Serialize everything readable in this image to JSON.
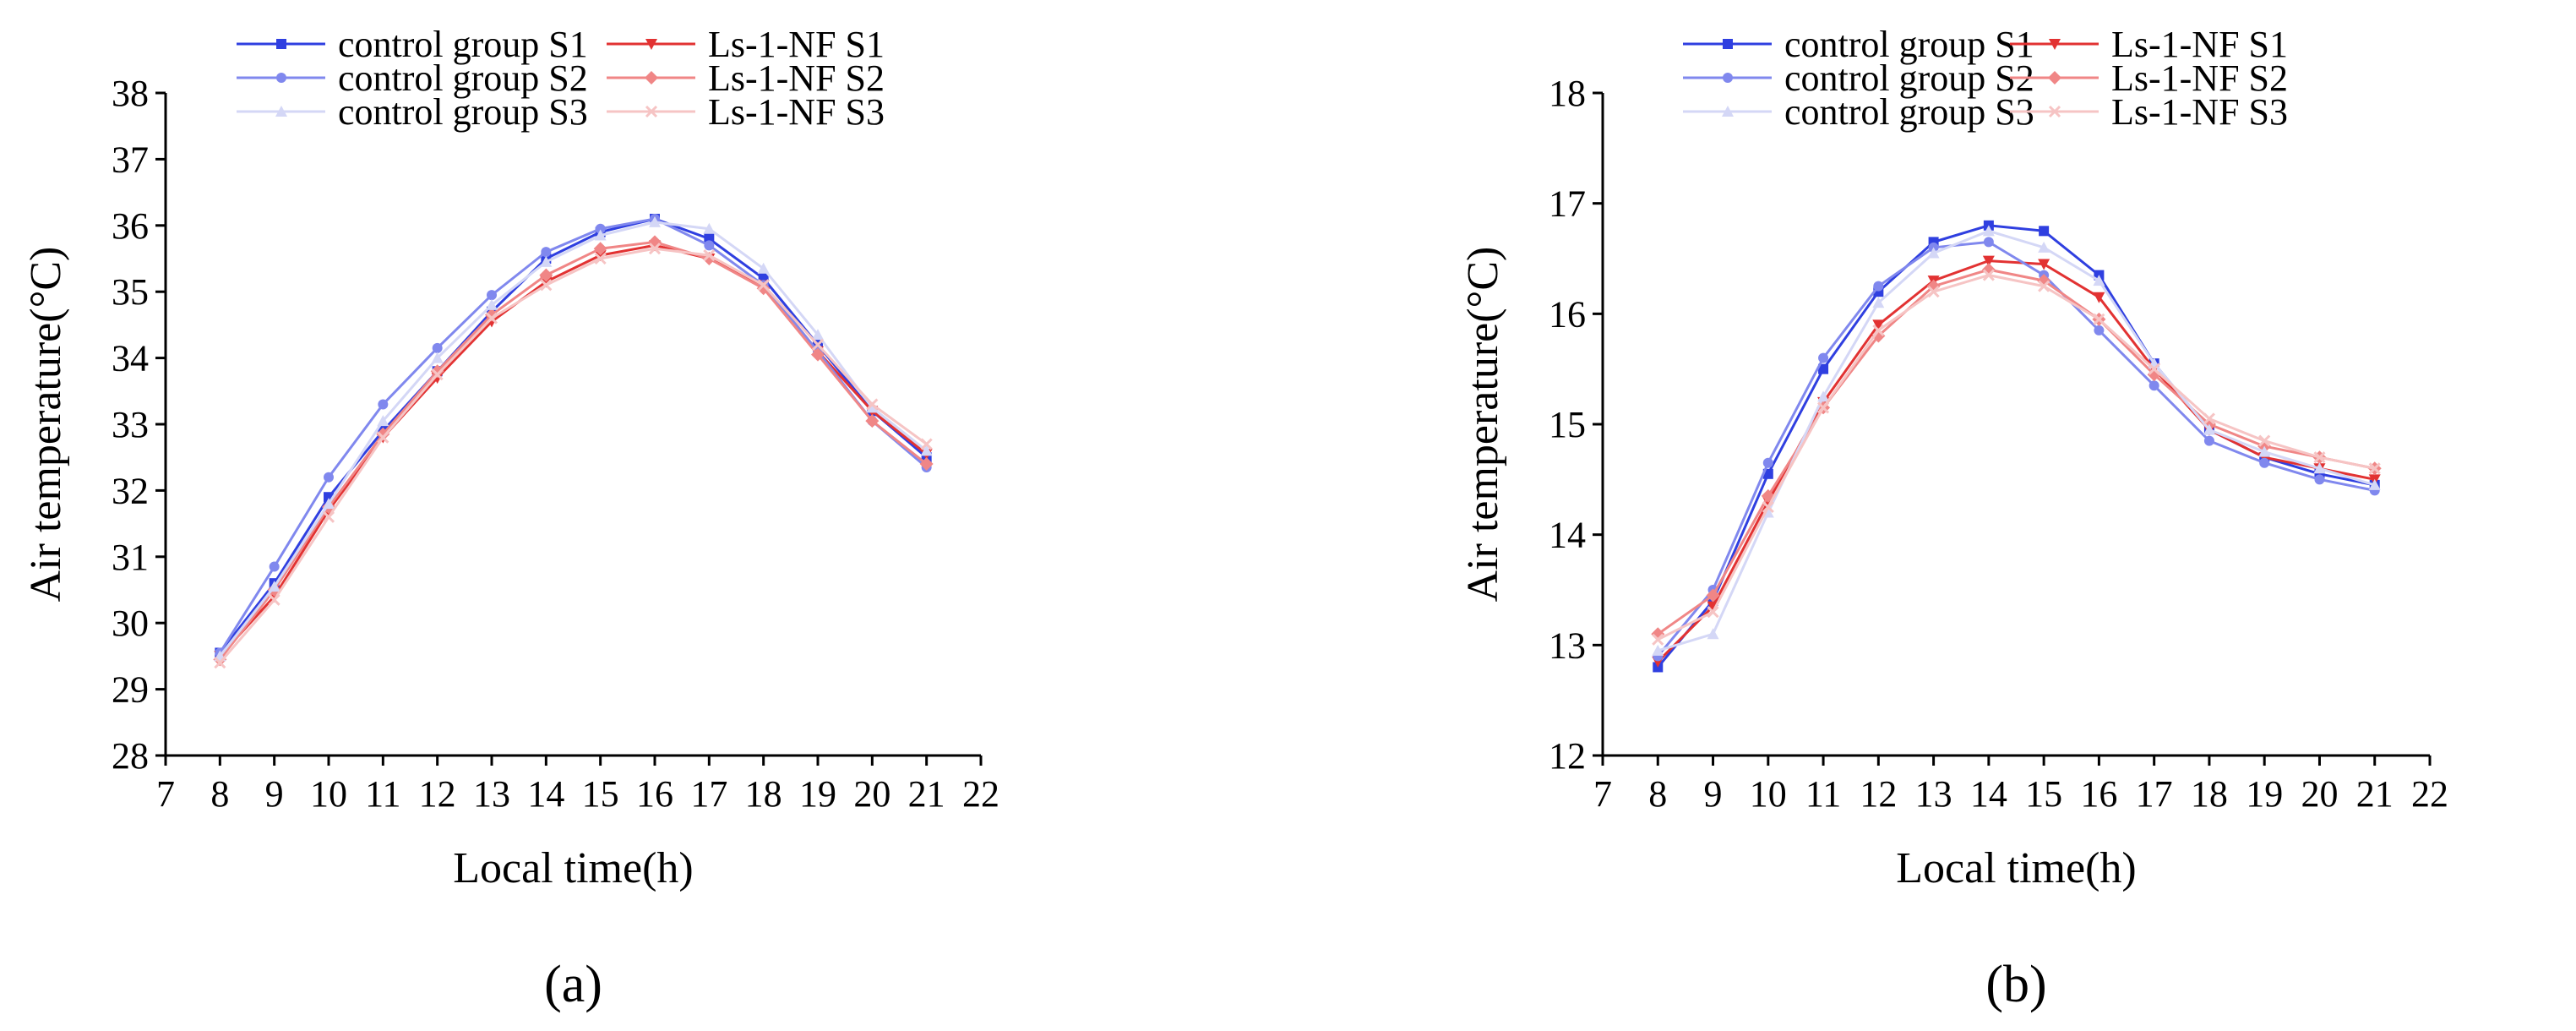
{
  "colors": {
    "control_S1": "#2f3fe0",
    "control_S2": "#8088ee",
    "control_S3": "#d4d7f6",
    "ls_S1": "#e23232",
    "ls_S2": "#f08686",
    "ls_S3": "#f6c4c4"
  },
  "chart_data": [
    {
      "type": "line",
      "panel_label": "(a)",
      "xlabel": "Local time(h)",
      "ylabel": "Air temperature(°C)",
      "xlim": [
        7,
        22
      ],
      "ylim": [
        28,
        38
      ],
      "xticks": [
        7,
        8,
        9,
        10,
        11,
        12,
        13,
        14,
        15,
        16,
        17,
        18,
        19,
        20,
        21,
        22
      ],
      "yticks": [
        28,
        29,
        30,
        31,
        32,
        33,
        34,
        35,
        36,
        37,
        38
      ],
      "legend_position": "top",
      "grid": false,
      "x": [
        8,
        9,
        10,
        11,
        12,
        13,
        14,
        15,
        16,
        17,
        18,
        19,
        20,
        21
      ],
      "series": [
        {
          "name": "control group S1",
          "color_key": "control_S1",
          "marker": "square",
          "values": [
            29.55,
            30.6,
            31.9,
            32.9,
            33.8,
            34.7,
            35.5,
            35.9,
            36.1,
            35.8,
            35.2,
            34.2,
            33.2,
            32.5
          ]
        },
        {
          "name": "Ls-1-NF S1",
          "color_key": "ls_S1",
          "marker": "triangle-down",
          "values": [
            29.5,
            30.4,
            31.7,
            32.8,
            33.7,
            34.55,
            35.15,
            35.55,
            35.7,
            35.5,
            35.1,
            34.1,
            33.2,
            32.55
          ]
        },
        {
          "name": "control group S2",
          "color_key": "control_S2",
          "marker": "circle",
          "values": [
            29.55,
            30.85,
            32.2,
            33.3,
            34.15,
            34.95,
            35.6,
            35.95,
            36.1,
            35.7,
            35.1,
            34.1,
            33.05,
            32.35
          ]
        },
        {
          "name": "Ls-1-NF S2",
          "color_key": "ls_S2",
          "marker": "diamond",
          "values": [
            29.45,
            30.5,
            31.75,
            32.85,
            33.8,
            34.65,
            35.25,
            35.65,
            35.75,
            35.5,
            35.05,
            34.05,
            33.05,
            32.4
          ]
        },
        {
          "name": "control group S3",
          "color_key": "control_S3",
          "marker": "triangle-up",
          "values": [
            29.5,
            30.55,
            31.8,
            33.05,
            34.0,
            34.8,
            35.45,
            35.85,
            36.05,
            35.95,
            35.35,
            34.35,
            33.25,
            32.6
          ]
        },
        {
          "name": "Ls-1-NF S3",
          "color_key": "ls_S3",
          "marker": "cross",
          "values": [
            29.4,
            30.35,
            31.6,
            32.8,
            33.75,
            34.6,
            35.1,
            35.5,
            35.65,
            35.55,
            35.1,
            34.2,
            33.3,
            32.7
          ]
        }
      ]
    },
    {
      "type": "line",
      "panel_label": "(b)",
      "xlabel": "Local time(h)",
      "ylabel": "Air temperature(°C)",
      "xlim": [
        7,
        22
      ],
      "ylim": [
        12,
        18
      ],
      "xticks": [
        7,
        8,
        9,
        10,
        11,
        12,
        13,
        14,
        15,
        16,
        17,
        18,
        19,
        20,
        21,
        22
      ],
      "yticks": [
        12,
        13,
        14,
        15,
        16,
        17,
        18
      ],
      "legend_position": "top",
      "grid": false,
      "x": [
        8,
        9,
        10,
        11,
        12,
        13,
        14,
        15,
        16,
        17,
        18,
        19,
        20,
        21
      ],
      "series": [
        {
          "name": "control group S1",
          "color_key": "control_S1",
          "marker": "square",
          "values": [
            12.8,
            13.4,
            14.55,
            15.5,
            16.2,
            16.65,
            16.8,
            16.75,
            16.35,
            15.55,
            14.95,
            14.7,
            14.55,
            14.45
          ]
        },
        {
          "name": "Ls-1-NF S1",
          "color_key": "ls_S1",
          "marker": "triangle-down",
          "values": [
            12.85,
            13.35,
            14.3,
            15.2,
            15.9,
            16.3,
            16.48,
            16.45,
            16.15,
            15.5,
            14.95,
            14.7,
            14.6,
            14.5
          ]
        },
        {
          "name": "control group S2",
          "color_key": "control_S2",
          "marker": "circle",
          "values": [
            12.9,
            13.5,
            14.65,
            15.6,
            16.25,
            16.6,
            16.65,
            16.35,
            15.85,
            15.35,
            14.85,
            14.65,
            14.5,
            14.4
          ]
        },
        {
          "name": "Ls-1-NF S2",
          "color_key": "ls_S2",
          "marker": "diamond",
          "values": [
            13.1,
            13.45,
            14.35,
            15.15,
            15.8,
            16.25,
            16.4,
            16.3,
            15.95,
            15.45,
            15.0,
            14.8,
            14.7,
            14.6
          ]
        },
        {
          "name": "control group S3",
          "color_key": "control_S3",
          "marker": "triangle-up",
          "values": [
            12.95,
            13.1,
            14.2,
            15.25,
            16.1,
            16.55,
            16.75,
            16.6,
            16.3,
            15.55,
            14.95,
            14.75,
            14.6,
            14.45
          ]
        },
        {
          "name": "Ls-1-NF S3",
          "color_key": "ls_S3",
          "marker": "cross",
          "values": [
            13.05,
            13.3,
            14.25,
            15.15,
            15.85,
            16.2,
            16.35,
            16.25,
            15.95,
            15.5,
            15.05,
            14.85,
            14.7,
            14.6
          ]
        }
      ]
    }
  ]
}
